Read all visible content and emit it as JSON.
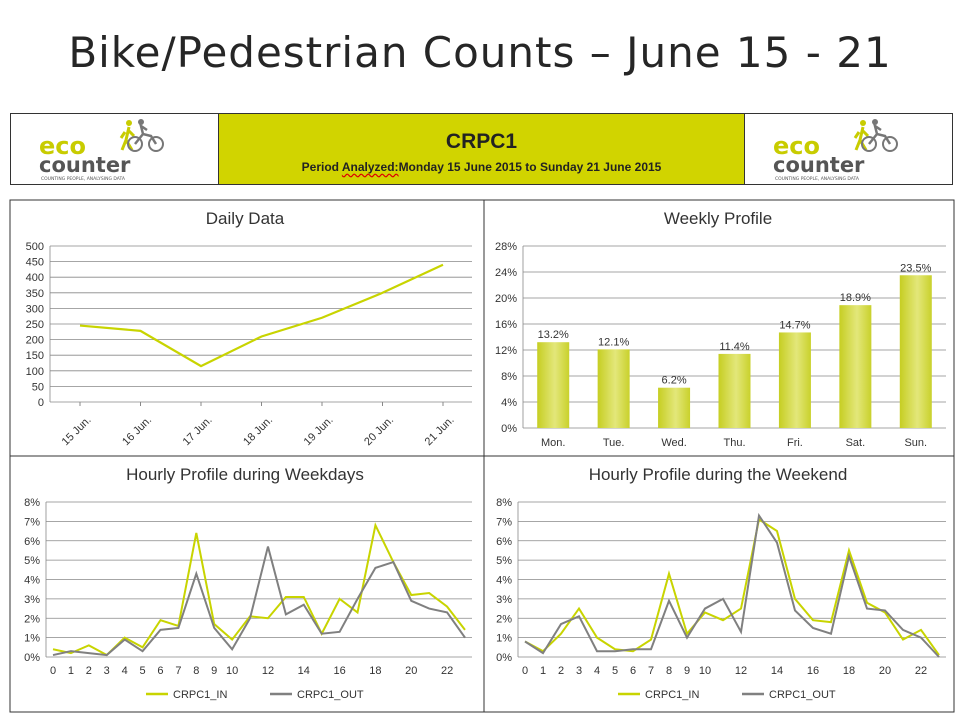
{
  "slide": {
    "title": "Bike/Pedestrian Counts – June 15 - 21"
  },
  "header": {
    "name": "CRPC1",
    "period_label": "Analyzed:",
    "period_text": "Period ",
    "period_rest": "Monday 15 June 2015 to Sunday 21 June 2015",
    "logo": {
      "word_top": "eco",
      "word_bottom": "counter",
      "tagline": "COUNTING PEOPLE, ANALYSING DATA",
      "icon": "cyclist-pedestrian-icon",
      "accent": "#c8cc00",
      "dark": "#555555"
    }
  },
  "colors": {
    "accent": "#c8d400",
    "secondary": "#808080",
    "bar_fill": "#d2d93a",
    "grid": "#888888"
  },
  "chart_data": [
    {
      "id": "daily",
      "type": "line",
      "title": "Daily Data",
      "categories": [
        "15 Jun.",
        "16 Jun.",
        "17 Jun.",
        "18 Jun.",
        "19 Jun.",
        "20 Jun.",
        "21 Jun."
      ],
      "values": [
        245,
        228,
        115,
        210,
        270,
        350,
        440
      ],
      "ylim": [
        0,
        500
      ],
      "yticks": [
        0,
        50,
        100,
        150,
        200,
        250,
        300,
        350,
        400,
        450,
        500
      ],
      "grid": true,
      "legend": "none"
    },
    {
      "id": "weekly",
      "type": "bar",
      "title": "Weekly Profile",
      "categories": [
        "Mon.",
        "Tue.",
        "Wed.",
        "Thu.",
        "Fri.",
        "Sat.",
        "Sun."
      ],
      "values": [
        13.2,
        12.1,
        6.2,
        11.4,
        14.7,
        18.9,
        23.5
      ],
      "labels": [
        "13.2%",
        "12.1%",
        "6.2%",
        "11.4%",
        "14.7%",
        "18.9%",
        "23.5%"
      ],
      "ylim": [
        0,
        28
      ],
      "yticks": [
        "0%",
        "4%",
        "8%",
        "12%",
        "16%",
        "20%",
        "24%",
        "28%"
      ],
      "grid": true,
      "legend": "none"
    },
    {
      "id": "weekdays",
      "type": "line",
      "title": "Hourly Profile during Weekdays",
      "x": [
        0,
        1,
        2,
        3,
        4,
        5,
        6,
        7,
        8,
        9,
        10,
        11,
        12,
        13,
        14,
        15,
        16,
        17,
        18,
        19,
        20,
        21,
        22,
        23
      ],
      "xtick_labels": [
        "0",
        "1",
        "2",
        "3",
        "4",
        "5",
        "6",
        "7",
        "8",
        "9",
        "10",
        "12",
        "14",
        "16",
        "18",
        "20",
        "22"
      ],
      "xtick_values": [
        0,
        1,
        2,
        3,
        4,
        5,
        6,
        7,
        8,
        9,
        10,
        12,
        14,
        16,
        18,
        20,
        22
      ],
      "series": [
        {
          "name": "CRPC1_IN",
          "values": [
            0.4,
            0.2,
            0.6,
            0.1,
            1.0,
            0.5,
            1.9,
            1.6,
            6.4,
            1.7,
            0.9,
            2.1,
            2.0,
            3.1,
            3.1,
            1.2,
            3.0,
            2.3,
            6.8,
            4.9,
            3.2,
            3.3,
            2.6,
            1.4
          ]
        },
        {
          "name": "CRPC1_OUT",
          "values": [
            0.1,
            0.3,
            0.2,
            0.1,
            0.9,
            0.3,
            1.4,
            1.5,
            4.3,
            1.5,
            0.4,
            2.0,
            5.7,
            2.2,
            2.7,
            1.2,
            1.3,
            3.0,
            4.6,
            4.9,
            2.9,
            2.5,
            2.3,
            1.0
          ]
        }
      ],
      "ylim": [
        0,
        8
      ],
      "yticks": [
        "0%",
        "1%",
        "2%",
        "3%",
        "4%",
        "5%",
        "6%",
        "7%",
        "8%"
      ],
      "grid": true,
      "legend": "bottom"
    },
    {
      "id": "weekend",
      "type": "line",
      "title": "Hourly Profile during the Weekend",
      "x": [
        0,
        1,
        2,
        3,
        4,
        5,
        6,
        7,
        8,
        9,
        10,
        11,
        12,
        13,
        14,
        15,
        16,
        17,
        18,
        19,
        20,
        21,
        22,
        23
      ],
      "xtick_labels": [
        "0",
        "1",
        "2",
        "3",
        "4",
        "5",
        "6",
        "7",
        "8",
        "9",
        "10",
        "12",
        "14",
        "16",
        "18",
        "20",
        "22"
      ],
      "xtick_values": [
        0,
        1,
        2,
        3,
        4,
        5,
        6,
        7,
        8,
        9,
        10,
        12,
        14,
        16,
        18,
        20,
        22
      ],
      "series": [
        {
          "name": "CRPC1_IN",
          "values": [
            0.8,
            0.3,
            1.2,
            2.5,
            1.0,
            0.4,
            0.3,
            0.9,
            4.3,
            1.2,
            2.3,
            1.9,
            2.5,
            7.1,
            6.5,
            3.0,
            1.9,
            1.8,
            5.5,
            2.8,
            2.3,
            0.9,
            1.4,
            0.1
          ]
        },
        {
          "name": "CRPC1_OUT",
          "values": [
            0.8,
            0.2,
            1.7,
            2.1,
            0.3,
            0.3,
            0.4,
            0.4,
            2.9,
            1.0,
            2.5,
            3.0,
            1.3,
            7.3,
            5.9,
            2.4,
            1.5,
            1.2,
            5.2,
            2.5,
            2.4,
            1.4,
            1.0,
            0.0
          ]
        }
      ],
      "ylim": [
        0,
        8
      ],
      "yticks": [
        "0%",
        "1%",
        "2%",
        "3%",
        "4%",
        "5%",
        "6%",
        "7%",
        "8%"
      ],
      "grid": true,
      "legend": "bottom"
    }
  ]
}
